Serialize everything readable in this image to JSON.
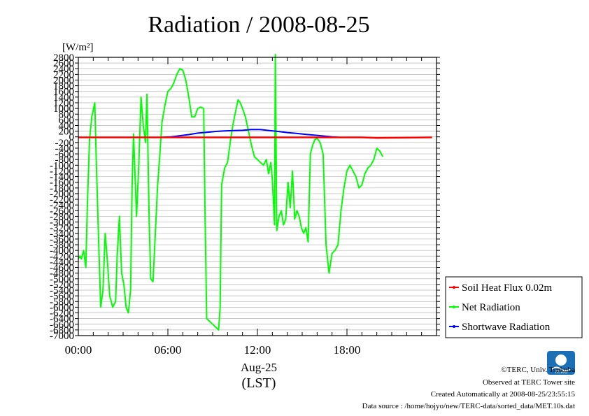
{
  "chart_data": {
    "type": "line",
    "title": "Radiation / 2008-08-25",
    "ylabel": "[W/m²]",
    "ylim": [
      -7000,
      2800
    ],
    "yticks": [
      2800,
      2600,
      2400,
      2200,
      2000,
      1800,
      1600,
      1400,
      1200,
      1000,
      800,
      600,
      400,
      200,
      0,
      -200,
      -400,
      -600,
      -800,
      -1000,
      -1200,
      -1400,
      -1600,
      -1800,
      -2000,
      -2200,
      -2400,
      -2600,
      -2800,
      -3000,
      -3200,
      -3400,
      -3600,
      -3800,
      -4000,
      -4200,
      -4400,
      -4600,
      -4800,
      -5000,
      -5200,
      -5400,
      -5600,
      -5800,
      -6000,
      -6200,
      -6400,
      -6600,
      -6800,
      -7000
    ],
    "xlim": [
      0,
      24
    ],
    "xticks": [
      {
        "value": 0,
        "label": "00:00"
      },
      {
        "value": 6,
        "label": "06:00"
      },
      {
        "value": 12,
        "label": "12:00"
      },
      {
        "value": 18,
        "label": "18:00"
      }
    ],
    "xdate_label": "Aug-25",
    "xunit_label": "(LST)",
    "legend_position": "right",
    "grid": true,
    "series": [
      {
        "name": "Soil Heat Flux 0.02m",
        "color": "#ff0000",
        "points": [
          [
            0,
            -20
          ],
          [
            4,
            -20
          ],
          [
            8,
            -20
          ],
          [
            12,
            -20
          ],
          [
            16,
            -20
          ],
          [
            19,
            -20
          ],
          [
            20,
            -40
          ],
          [
            22,
            -30
          ],
          [
            23.7,
            -20
          ]
        ]
      },
      {
        "name": "Net Radiation",
        "color": "#00ff00",
        "points": [
          [
            0,
            -4300
          ],
          [
            0.1,
            -4200
          ],
          [
            0.2,
            -4300
          ],
          [
            0.35,
            -4000
          ],
          [
            0.5,
            -4600
          ],
          [
            0.6,
            -2500
          ],
          [
            0.75,
            -100
          ],
          [
            0.9,
            700
          ],
          [
            1.1,
            1200
          ],
          [
            1.2,
            -800
          ],
          [
            1.35,
            -3500
          ],
          [
            1.5,
            -6000
          ],
          [
            1.65,
            -5400
          ],
          [
            1.8,
            -3400
          ],
          [
            1.95,
            -4400
          ],
          [
            2.1,
            -5600
          ],
          [
            2.3,
            -6000
          ],
          [
            2.5,
            -5800
          ],
          [
            2.6,
            -4200
          ],
          [
            2.75,
            -2800
          ],
          [
            2.9,
            -4800
          ],
          [
            3.05,
            -5200
          ],
          [
            3.2,
            -6000
          ],
          [
            3.35,
            -6200
          ],
          [
            3.5,
            -5400
          ],
          [
            3.6,
            -1800
          ],
          [
            3.7,
            100
          ],
          [
            3.8,
            -1400
          ],
          [
            3.9,
            -2800
          ],
          [
            4.05,
            -1000
          ],
          [
            4.2,
            1400
          ],
          [
            4.35,
            400
          ],
          [
            4.5,
            -200
          ],
          [
            4.6,
            1500
          ],
          [
            4.75,
            -3000
          ],
          [
            4.85,
            -5000
          ],
          [
            5.0,
            -5100
          ],
          [
            5.15,
            -3500
          ],
          [
            5.3,
            -1800
          ],
          [
            5.45,
            -700
          ],
          [
            5.6,
            500
          ],
          [
            5.8,
            1100
          ],
          [
            6.0,
            1600
          ],
          [
            6.2,
            1700
          ],
          [
            6.4,
            1900
          ],
          [
            6.6,
            2200
          ],
          [
            6.8,
            2400
          ],
          [
            7.0,
            2350
          ],
          [
            7.2,
            2000
          ],
          [
            7.4,
            1400
          ],
          [
            7.6,
            700
          ],
          [
            7.8,
            700
          ],
          [
            8.0,
            1000
          ],
          [
            8.2,
            1050
          ],
          [
            8.4,
            1000
          ],
          [
            8.5,
            -3000
          ],
          [
            8.6,
            -6400
          ],
          [
            8.8,
            -6500
          ],
          [
            9.0,
            -6600
          ],
          [
            9.2,
            -6700
          ],
          [
            9.4,
            -6800
          ],
          [
            9.5,
            -6000
          ],
          [
            9.6,
            -1700
          ],
          [
            9.8,
            -1100
          ],
          [
            10.0,
            -900
          ],
          [
            10.1,
            -500
          ],
          [
            10.2,
            -100
          ],
          [
            10.35,
            400
          ],
          [
            10.5,
            800
          ],
          [
            10.7,
            1300
          ],
          [
            10.85,
            1200
          ],
          [
            11.0,
            1000
          ],
          [
            11.2,
            700
          ],
          [
            11.4,
            200
          ],
          [
            11.6,
            -300
          ],
          [
            11.8,
            -700
          ],
          [
            12.0,
            -800
          ],
          [
            12.2,
            -900
          ],
          [
            12.4,
            -1000
          ],
          [
            12.6,
            -800
          ],
          [
            12.75,
            -1300
          ],
          [
            12.9,
            -900
          ],
          [
            13.0,
            -1500
          ],
          [
            13.15,
            -3100
          ],
          [
            13.2,
            2900
          ],
          [
            13.3,
            -3300
          ],
          [
            13.45,
            -2800
          ],
          [
            13.6,
            -2600
          ],
          [
            13.75,
            -3100
          ],
          [
            13.9,
            -2900
          ],
          [
            14.05,
            -1600
          ],
          [
            14.2,
            -2500
          ],
          [
            14.35,
            -1200
          ],
          [
            14.5,
            -2900
          ],
          [
            14.65,
            -2600
          ],
          [
            14.8,
            -2800
          ],
          [
            14.95,
            -3200
          ],
          [
            15.1,
            -3400
          ],
          [
            15.25,
            -3200
          ],
          [
            15.4,
            -3700
          ],
          [
            15.55,
            -600
          ],
          [
            15.7,
            -300
          ],
          [
            15.85,
            -100
          ],
          [
            16.0,
            -50
          ],
          [
            16.2,
            -200
          ],
          [
            16.4,
            -600
          ],
          [
            16.6,
            -3800
          ],
          [
            16.8,
            -4800
          ],
          [
            17.0,
            -4100
          ],
          [
            17.2,
            -4000
          ],
          [
            17.4,
            -3800
          ],
          [
            17.6,
            -2600
          ],
          [
            17.8,
            -1800
          ],
          [
            18.0,
            -1200
          ],
          [
            18.2,
            -1000
          ],
          [
            18.4,
            -1200
          ],
          [
            18.6,
            -1400
          ],
          [
            18.8,
            -1800
          ],
          [
            19.0,
            -1700
          ],
          [
            19.2,
            -1300
          ],
          [
            19.4,
            -1100
          ],
          [
            19.6,
            -1000
          ],
          [
            19.8,
            -800
          ],
          [
            20.0,
            -400
          ],
          [
            20.2,
            -500
          ],
          [
            20.4,
            -700
          ]
        ]
      },
      {
        "name": "Shortwave Radiation",
        "color": "#0000ff",
        "points": [
          [
            5.5,
            -20
          ],
          [
            6.2,
            0
          ],
          [
            6.8,
            40
          ],
          [
            7.4,
            80
          ],
          [
            8.0,
            130
          ],
          [
            8.6,
            160
          ],
          [
            9.2,
            190
          ],
          [
            9.8,
            210
          ],
          [
            10.4,
            220
          ],
          [
            11.0,
            230
          ],
          [
            11.6,
            260
          ],
          [
            12.2,
            260
          ],
          [
            12.8,
            220
          ],
          [
            13.4,
            190
          ],
          [
            14.0,
            150
          ],
          [
            14.6,
            120
          ],
          [
            15.2,
            90
          ],
          [
            15.8,
            60
          ],
          [
            16.4,
            30
          ],
          [
            17.0,
            0
          ],
          [
            17.5,
            -20
          ]
        ]
      }
    ]
  },
  "footer": {
    "copyright": "©TERC, Univ. Tsukuba",
    "observed": "Observed at TERC Tower site",
    "created": "Created Automatically at 2008-08-25/23:55:15",
    "source": "Data source : /home/hojyo/new/TERC-data/sorted_data/MET.10s.dat",
    "logo_text": "TERC"
  }
}
